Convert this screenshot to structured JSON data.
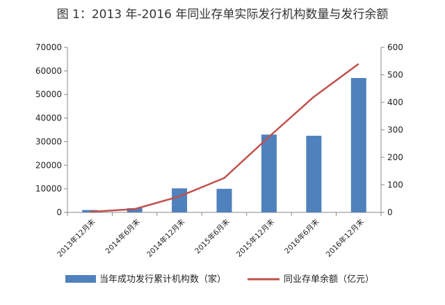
{
  "chart_data": {
    "type": "bar",
    "title": "图 1：2013 年-2016 年同业存单实际发行机构数量与发行余额",
    "categories": [
      "2013年12月末",
      "2014年6月末",
      "2014年12月末",
      "2015年6月末",
      "2015年12月末",
      "2016年6月末",
      "2016年12月末"
    ],
    "series": [
      {
        "name": "当年成功发行累计机构数（家）",
        "type": "bar",
        "axis": "left",
        "color": "#4F81BD",
        "values": [
          1000,
          1800,
          10200,
          10000,
          33000,
          32500,
          57000
        ]
      },
      {
        "name": "同业存单余额（亿元）",
        "type": "line",
        "axis": "right",
        "color": "#C0504D",
        "values": [
          2,
          12,
          58,
          125,
          275,
          420,
          540
        ]
      }
    ],
    "left_axis": {
      "ylim": [
        0,
        70000
      ],
      "ticks": [
        0,
        10000,
        20000,
        30000,
        40000,
        50000,
        60000,
        70000
      ]
    },
    "right_axis": {
      "ylim": [
        0,
        600
      ],
      "ticks": [
        0,
        100,
        200,
        300,
        400,
        500,
        600
      ]
    },
    "grid": false,
    "legend_position": "bottom"
  }
}
